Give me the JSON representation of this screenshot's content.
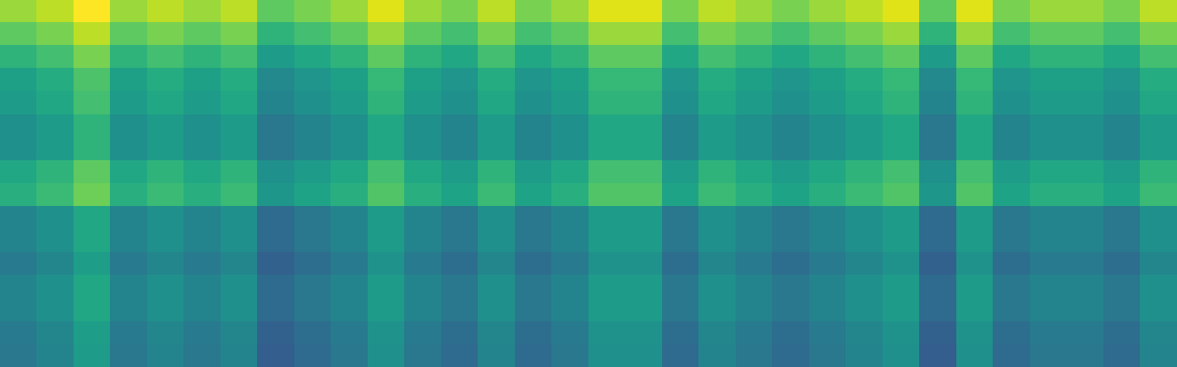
{
  "chart_data": {
    "type": "heatmap",
    "color": "viridis",
    "tick_labels": false,
    "color_range": [
      0,
      100
    ],
    "cells": [
      [
        85,
        90,
        100,
        85,
        90,
        85,
        90,
        75,
        80,
        85,
        95,
        85,
        80,
        90,
        80,
        85,
        95,
        95,
        80,
        90,
        85,
        80,
        85,
        90,
        95,
        75,
        95,
        80,
        85,
        85,
        80,
        90
      ],
      [
        75,
        80,
        90,
        75,
        80,
        75,
        80,
        65,
        70,
        75,
        85,
        75,
        70,
        80,
        70,
        75,
        85,
        85,
        70,
        80,
        75,
        70,
        75,
        80,
        85,
        65,
        85,
        70,
        75,
        75,
        70,
        80
      ],
      [
        65,
        70,
        80,
        65,
        70,
        65,
        70,
        55,
        60,
        65,
        75,
        65,
        60,
        70,
        60,
        65,
        75,
        75,
        60,
        70,
        65,
        60,
        65,
        70,
        75,
        55,
        75,
        60,
        65,
        65,
        60,
        70
      ],
      [
        57,
        62,
        72,
        57,
        62,
        57,
        62,
        47,
        52,
        57,
        67,
        57,
        52,
        62,
        52,
        57,
        67,
        67,
        52,
        62,
        57,
        52,
        57,
        62,
        67,
        47,
        67,
        52,
        57,
        57,
        52,
        62
      ],
      [
        55,
        60,
        70,
        55,
        60,
        55,
        60,
        45,
        50,
        55,
        65,
        55,
        50,
        60,
        50,
        55,
        65,
        65,
        50,
        60,
        55,
        50,
        55,
        60,
        65,
        45,
        65,
        50,
        55,
        55,
        50,
        60
      ],
      [
        50,
        55,
        65,
        50,
        55,
        50,
        55,
        40,
        45,
        50,
        60,
        50,
        45,
        55,
        45,
        50,
        60,
        60,
        45,
        55,
        50,
        45,
        50,
        55,
        60,
        40,
        60,
        45,
        50,
        50,
        45,
        55
      ],
      [
        50,
        55,
        65,
        50,
        55,
        50,
        55,
        40,
        45,
        50,
        60,
        50,
        45,
        55,
        45,
        50,
        60,
        60,
        45,
        55,
        50,
        45,
        50,
        55,
        60,
        40,
        60,
        45,
        50,
        50,
        45,
        55
      ],
      [
        60,
        65,
        75,
        60,
        65,
        60,
        65,
        50,
        55,
        60,
        70,
        60,
        55,
        65,
        55,
        60,
        70,
        70,
        55,
        65,
        60,
        55,
        60,
        65,
        70,
        50,
        70,
        55,
        60,
        60,
        55,
        65
      ],
      [
        63,
        68,
        78,
        63,
        68,
        63,
        68,
        53,
        58,
        63,
        73,
        63,
        58,
        68,
        58,
        63,
        73,
        73,
        58,
        68,
        63,
        58,
        63,
        68,
        73,
        53,
        73,
        58,
        63,
        63,
        58,
        68
      ],
      [
        45,
        50,
        60,
        45,
        50,
        45,
        50,
        35,
        40,
        45,
        55,
        45,
        40,
        50,
        40,
        45,
        55,
        55,
        40,
        50,
        45,
        40,
        45,
        50,
        55,
        35,
        55,
        40,
        45,
        45,
        40,
        50
      ],
      [
        45,
        50,
        60,
        45,
        50,
        45,
        50,
        35,
        40,
        45,
        55,
        45,
        40,
        50,
        40,
        45,
        55,
        55,
        40,
        50,
        45,
        40,
        45,
        50,
        55,
        35,
        55,
        40,
        45,
        45,
        40,
        50
      ],
      [
        41,
        46,
        56,
        41,
        46,
        41,
        46,
        31,
        36,
        41,
        51,
        41,
        36,
        46,
        36,
        41,
        51,
        51,
        36,
        46,
        41,
        36,
        41,
        46,
        51,
        31,
        51,
        36,
        41,
        41,
        36,
        46
      ],
      [
        45,
        50,
        60,
        45,
        50,
        45,
        50,
        35,
        40,
        45,
        55,
        45,
        40,
        50,
        40,
        45,
        55,
        55,
        40,
        50,
        45,
        40,
        45,
        50,
        55,
        35,
        55,
        40,
        45,
        45,
        40,
        50
      ],
      [
        45,
        50,
        60,
        45,
        50,
        45,
        50,
        35,
        40,
        45,
        55,
        45,
        40,
        50,
        40,
        45,
        55,
        55,
        40,
        50,
        45,
        40,
        45,
        50,
        55,
        35,
        55,
        40,
        45,
        45,
        40,
        50
      ],
      [
        41,
        46,
        56,
        41,
        46,
        41,
        46,
        31,
        36,
        41,
        51,
        41,
        36,
        46,
        36,
        41,
        51,
        51,
        36,
        46,
        41,
        36,
        41,
        46,
        51,
        31,
        51,
        36,
        41,
        41,
        36,
        46
      ],
      [
        40,
        45,
        55,
        40,
        45,
        40,
        45,
        30,
        35,
        40,
        50,
        40,
        35,
        45,
        35,
        40,
        50,
        50,
        35,
        45,
        40,
        35,
        40,
        45,
        50,
        30,
        50,
        35,
        40,
        40,
        35,
        45
      ]
    ]
  }
}
